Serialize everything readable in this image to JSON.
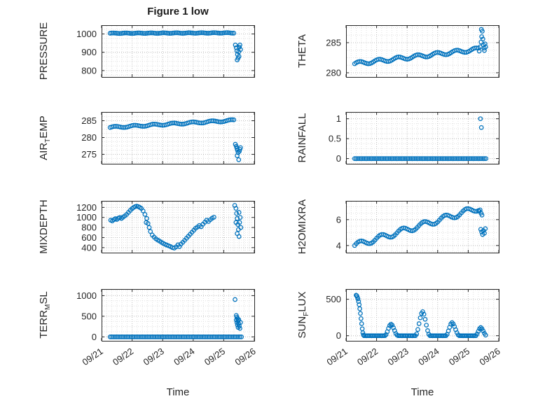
{
  "title": "Figure 1 low",
  "xlabel": "Time",
  "accent_color": "#0072BD",
  "axis": {
    "xlim": [
      0,
      5
    ],
    "xtick_values": [
      0,
      1,
      2,
      3,
      4,
      5
    ],
    "xtick_labels": [
      "09/21",
      "09/22",
      "09/23",
      "09/24",
      "09/25",
      "09/26"
    ]
  },
  "chart_data": [
    {
      "name": "pressure",
      "type": "scatter",
      "ylabel": {
        "pre": "PRESSURE",
        "sub": "",
        "post": ""
      },
      "ylim": [
        765,
        1048
      ],
      "yticks": [
        800,
        900,
        1000
      ],
      "show_xticklabels": false,
      "segments": [
        {
          "run": {
            "x0": 0.28,
            "x1": 4.33,
            "n": 78,
            "y0": 1004,
            "y1": 1006,
            "wiggle": 1.5,
            "freq": 0.8
          }
        },
        {
          "points": [
            [
              4.38,
              940
            ],
            [
              4.41,
              925
            ],
            [
              4.43,
              908
            ],
            [
              4.45,
              888
            ],
            [
              4.47,
              868
            ],
            [
              4.44,
              858
            ],
            [
              4.49,
              902
            ],
            [
              4.51,
              928
            ],
            [
              4.53,
              940
            ],
            [
              4.55,
              915
            ],
            [
              4.5,
              878
            ]
          ]
        }
      ]
    },
    {
      "name": "theta",
      "type": "scatter",
      "ylabel": {
        "pre": "THETA",
        "sub": "",
        "post": ""
      },
      "ylim": [
        279.3,
        287.9
      ],
      "yticks": [
        280,
        285
      ],
      "show_xticklabels": false,
      "segments": [
        {
          "run": {
            "x0": 0.28,
            "x1": 4.33,
            "n": 74,
            "y0": 281.5,
            "y1": 283.9,
            "wiggle": 0.28,
            "freq": 0.55
          }
        },
        {
          "points": [
            [
              4.36,
              283.6
            ],
            [
              4.39,
              284.3
            ],
            [
              4.42,
              285.1
            ],
            [
              4.44,
              286.0
            ],
            [
              4.46,
              286.9
            ],
            [
              4.43,
              287.2
            ],
            [
              4.48,
              285.6
            ],
            [
              4.5,
              284.6
            ],
            [
              4.52,
              284.1
            ],
            [
              4.55,
              284.8
            ],
            [
              4.57,
              284.3
            ],
            [
              4.53,
              283.7
            ]
          ]
        }
      ]
    },
    {
      "name": "air-temp",
      "type": "scatter",
      "ylabel": {
        "pre": "AIR",
        "sub": "T",
        "post": "EMP"
      },
      "ylim": [
        272.2,
        287.6
      ],
      "yticks": [
        275,
        280,
        285
      ],
      "show_xticklabels": false,
      "segments": [
        {
          "run": {
            "x0": 0.28,
            "x1": 4.33,
            "n": 74,
            "y0": 283.0,
            "y1": 285.1,
            "wiggle": 0.25,
            "freq": 0.55
          }
        },
        {
          "points": [
            [
              4.38,
              278.0
            ],
            [
              4.41,
              277.4
            ],
            [
              4.43,
              276.8
            ],
            [
              4.45,
              276.2
            ],
            [
              4.47,
              275.5
            ],
            [
              4.44,
              274.6
            ],
            [
              4.49,
              273.4
            ],
            [
              4.51,
              275.9
            ],
            [
              4.53,
              276.5
            ],
            [
              4.55,
              277.0
            ]
          ]
        }
      ]
    },
    {
      "name": "rainfall",
      "type": "scatter",
      "ylabel": {
        "pre": "RAINFALL",
        "sub": "",
        "post": ""
      },
      "ylim": [
        -0.13,
        1.17
      ],
      "yticks": [
        0,
        0.5,
        1
      ],
      "show_xticklabels": false,
      "segments": [
        {
          "run": {
            "x0": 0.28,
            "x1": 4.58,
            "n": 82,
            "y0": 0,
            "y1": 0
          }
        },
        {
          "points": [
            [
              4.4,
              1.0
            ],
            [
              4.43,
              0.78
            ]
          ]
        }
      ]
    },
    {
      "name": "mixdepth",
      "type": "scatter",
      "ylabel": {
        "pre": "MIXDEPTH",
        "sub": "",
        "post": ""
      },
      "ylim": [
        300,
        1330
      ],
      "yticks": [
        400,
        600,
        800,
        1000,
        1200
      ],
      "show_xticklabels": false,
      "segments": [
        {
          "points": [
            [
              0.3,
              945
            ],
            [
              0.35,
              930
            ],
            [
              0.4,
              955
            ],
            [
              0.45,
              975
            ],
            [
              0.5,
              960
            ],
            [
              0.55,
              985
            ],
            [
              0.6,
              1000
            ],
            [
              0.65,
              980
            ],
            [
              0.7,
              1005
            ],
            [
              0.76,
              1030
            ],
            [
              0.82,
              1060
            ],
            [
              0.88,
              1100
            ],
            [
              0.94,
              1140
            ],
            [
              1.0,
              1175
            ],
            [
              1.05,
              1200
            ],
            [
              1.1,
              1215
            ],
            [
              1.15,
              1225
            ],
            [
              1.2,
              1215
            ],
            [
              1.25,
              1200
            ],
            [
              1.3,
              1180
            ],
            [
              1.36,
              1130
            ],
            [
              1.42,
              1060
            ],
            [
              1.46,
              900
            ],
            [
              1.48,
              980
            ],
            [
              1.52,
              880
            ],
            [
              1.56,
              800
            ],
            [
              1.6,
              720
            ],
            [
              1.66,
              650
            ],
            [
              1.72,
              610
            ],
            [
              1.78,
              575
            ],
            [
              1.84,
              550
            ],
            [
              1.9,
              530
            ],
            [
              1.96,
              505
            ],
            [
              2.02,
              485
            ],
            [
              2.08,
              465
            ],
            [
              2.14,
              450
            ],
            [
              2.2,
              435
            ],
            [
              2.26,
              420
            ],
            [
              2.32,
              400
            ],
            [
              2.38,
              390
            ],
            [
              2.44,
              415
            ],
            [
              2.5,
              455
            ],
            [
              2.55,
              420
            ],
            [
              2.6,
              470
            ],
            [
              2.66,
              505
            ],
            [
              2.72,
              545
            ],
            [
              2.78,
              585
            ],
            [
              2.84,
              625
            ],
            [
              2.9,
              665
            ],
            [
              2.96,
              705
            ],
            [
              3.02,
              745
            ],
            [
              3.08,
              785
            ],
            [
              3.14,
              810
            ],
            [
              3.2,
              840
            ],
            [
              3.26,
              815
            ],
            [
              3.32,
              865
            ],
            [
              3.38,
              905
            ],
            [
              3.44,
              945
            ],
            [
              3.5,
              920
            ],
            [
              3.56,
              955
            ],
            [
              3.62,
              985
            ],
            [
              3.68,
              1005
            ]
          ]
        },
        {
          "points": [
            [
              4.36,
              1240
            ],
            [
              4.4,
              1180
            ],
            [
              4.42,
              1080
            ],
            [
              4.44,
              980
            ],
            [
              4.4,
              900
            ],
            [
              4.46,
              860
            ],
            [
              4.48,
              760
            ],
            [
              4.44,
              680
            ],
            [
              4.5,
              620
            ],
            [
              4.52,
              900
            ],
            [
              4.54,
              1000
            ],
            [
              4.5,
              1100
            ],
            [
              4.56,
              800
            ]
          ]
        }
      ]
    },
    {
      "name": "h2omixra",
      "type": "scatter",
      "ylabel": {
        "pre": "H2OMIXRA",
        "sub": "",
        "post": ""
      },
      "ylim": [
        3.45,
        7.45
      ],
      "yticks": [
        4,
        6
      ],
      "show_xticklabels": false,
      "segments": [
        {
          "run": {
            "x0": 0.28,
            "x1": 4.33,
            "n": 74,
            "y0": 4.0,
            "y1": 6.9,
            "wiggle": 0.22,
            "freq": 0.5
          }
        },
        {
          "points": [
            [
              4.36,
              6.65
            ],
            [
              4.39,
              6.75
            ],
            [
              4.42,
              6.5
            ],
            [
              4.45,
              6.35
            ],
            [
              4.41,
              5.25
            ],
            [
              4.44,
              5.05
            ],
            [
              4.47,
              4.85
            ],
            [
              4.5,
              5.15
            ],
            [
              4.53,
              4.95
            ],
            [
              4.56,
              5.3
            ]
          ]
        }
      ]
    },
    {
      "name": "terr-msl",
      "type": "scatter",
      "ylabel": {
        "pre": "TERR",
        "sub": "M",
        "post": "SL"
      },
      "ylim": [
        -95,
        1160
      ],
      "yticks": [
        0,
        500,
        1000
      ],
      "show_xticklabels": true,
      "segments": [
        {
          "run": {
            "x0": 0.28,
            "x1": 4.58,
            "n": 82,
            "y0": 0,
            "y1": 0
          }
        },
        {
          "points": [
            [
              4.37,
              905
            ],
            [
              4.41,
              520
            ],
            [
              4.43,
              480
            ],
            [
              4.45,
              445
            ],
            [
              4.41,
              410
            ],
            [
              4.47,
              385
            ],
            [
              4.43,
              350
            ],
            [
              4.49,
              320
            ],
            [
              4.45,
              290
            ],
            [
              4.51,
              260
            ],
            [
              4.47,
              230
            ],
            [
              4.53,
              205
            ],
            [
              4.49,
              420
            ],
            [
              4.55,
              350
            ]
          ]
        }
      ]
    },
    {
      "name": "sun-flux",
      "type": "scatter",
      "ylabel": {
        "pre": "SUN",
        "sub": "F",
        "post": "LUX"
      },
      "ylim": [
        -70,
        640
      ],
      "yticks": [
        0,
        500
      ],
      "show_xticklabels": true,
      "segments": [
        {
          "points": [
            [
              0.33,
              555
            ],
            [
              0.35,
              548
            ],
            [
              0.37,
              530
            ],
            [
              0.39,
              505
            ],
            [
              0.41,
              470
            ],
            [
              0.43,
              425
            ],
            [
              0.45,
              370
            ],
            [
              0.47,
              305
            ],
            [
              0.49,
              235
            ],
            [
              0.51,
              165
            ],
            [
              0.53,
              95
            ],
            [
              0.55,
              40
            ],
            [
              0.57,
              10
            ]
          ]
        },
        {
          "run": {
            "x0": 0.59,
            "x1": 1.27,
            "n": 18,
            "y0": 0,
            "y1": 0
          }
        },
        {
          "points": [
            [
              1.31,
              15
            ],
            [
              1.35,
              55
            ],
            [
              1.39,
              100
            ],
            [
              1.43,
              140
            ],
            [
              1.47,
              158
            ],
            [
              1.51,
              145
            ],
            [
              1.55,
              110
            ],
            [
              1.59,
              70
            ],
            [
              1.63,
              30
            ],
            [
              1.67,
              8
            ]
          ]
        },
        {
          "run": {
            "x0": 1.71,
            "x1": 2.27,
            "n": 15,
            "y0": 0,
            "y1": 0
          }
        },
        {
          "points": [
            [
              2.31,
              25
            ],
            [
              2.35,
              85
            ],
            [
              2.39,
              165
            ],
            [
              2.43,
              245
            ],
            [
              2.47,
              305
            ],
            [
              2.51,
              330
            ],
            [
              2.55,
              295
            ],
            [
              2.59,
              225
            ],
            [
              2.63,
              145
            ],
            [
              2.67,
              70
            ],
            [
              2.71,
              20
            ]
          ]
        },
        {
          "run": {
            "x0": 2.75,
            "x1": 3.27,
            "n": 14,
            "y0": 0,
            "y1": 0
          }
        },
        {
          "points": [
            [
              3.31,
              20
            ],
            [
              3.35,
              65
            ],
            [
              3.39,
              115
            ],
            [
              3.43,
              160
            ],
            [
              3.47,
              180
            ],
            [
              3.51,
              162
            ],
            [
              3.55,
              125
            ],
            [
              3.59,
              82
            ],
            [
              3.63,
              42
            ],
            [
              3.67,
              12
            ]
          ]
        },
        {
          "run": {
            "x0": 3.71,
            "x1": 4.25,
            "n": 14,
            "y0": 0,
            "y1": 0
          }
        },
        {
          "points": [
            [
              4.29,
              25
            ],
            [
              4.33,
              60
            ],
            [
              4.37,
              95
            ],
            [
              4.41,
              112
            ],
            [
              4.45,
              95
            ],
            [
              4.49,
              65
            ],
            [
              4.53,
              32
            ],
            [
              4.57,
              8
            ]
          ]
        }
      ]
    }
  ]
}
